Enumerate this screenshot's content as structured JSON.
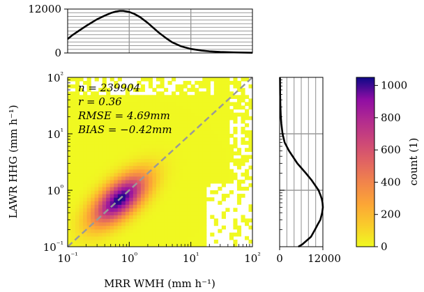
{
  "chart_data": [
    {
      "type": "heatmap",
      "panel": "main",
      "xlabel": "MRR WMH (mm h⁻¹)",
      "ylabel": "LAWR HHG (mm h⁻¹)",
      "xscale": "log",
      "yscale": "log",
      "xlim": [
        0.1,
        100
      ],
      "ylim": [
        0.1,
        100
      ],
      "xticks": [
        {
          "value": 0.1,
          "label": "10⁻¹"
        },
        {
          "value": 1,
          "label": "10⁰"
        },
        {
          "value": 10,
          "label": "10¹"
        },
        {
          "value": 100,
          "label": "10²"
        }
      ],
      "yticks": [
        {
          "value": 0.1,
          "label": "10⁻¹"
        },
        {
          "value": 1,
          "label": "10⁰"
        },
        {
          "value": 10,
          "label": "10¹"
        },
        {
          "value": 100,
          "label": "10²"
        }
      ],
      "annotations": [
        "n = 239904",
        "r = 0.36",
        "RMSE = 4.69mm",
        "BIAS = −0.42mm"
      ],
      "reference_line": "1:1 identity line (dashed grey)",
      "density_peak": {
        "x": 0.7,
        "y": 0.7,
        "count": 1050
      }
    },
    {
      "type": "line",
      "panel": "top-marginal",
      "series": [
        {
          "x": [
            0.1,
            0.12,
            0.15,
            0.2,
            0.3,
            0.4,
            0.5,
            0.6,
            0.7,
            0.8,
            1,
            1.2,
            1.5,
            2,
            3,
            4,
            5,
            7,
            10,
            15,
            20,
            30,
            50,
            100
          ],
          "values": [
            3800,
            4900,
            6000,
            7400,
            9200,
            10200,
            10900,
            11300,
            11500,
            11500,
            11200,
            10700,
            9800,
            8200,
            5600,
            4000,
            2900,
            1800,
            1100,
            650,
            450,
            280,
            150,
            60
          ]
        }
      ],
      "ylim": [
        0,
        12000
      ],
      "yticks": [
        {
          "value": 0,
          "label": "0"
        },
        {
          "value": 12000,
          "label": "12000"
        }
      ],
      "grid": true
    },
    {
      "type": "line",
      "panel": "right-marginal",
      "series": [
        {
          "x": [
            0.1,
            0.11,
            0.13,
            0.15,
            0.2,
            0.25,
            0.3,
            0.4,
            0.5,
            0.6,
            0.7,
            0.8,
            1,
            1.5,
            2,
            3,
            5,
            7,
            10,
            15,
            20,
            30,
            50,
            100
          ],
          "values": [
            5200,
            6300,
            7600,
            8700,
            9800,
            10600,
            11300,
            11800,
            12000,
            11900,
            11700,
            11400,
            10800,
            8900,
            7300,
            4900,
            2600,
            1400,
            800,
            480,
            330,
            220,
            140,
            100
          ]
        }
      ],
      "xlim": [
        0,
        12000
      ],
      "xticks": [
        {
          "value": 0,
          "label": "0"
        },
        {
          "value": 12000,
          "label": "12000"
        }
      ],
      "grid": true
    },
    {
      "type": "colorbar",
      "panel": "colorbar",
      "label": "count (1)",
      "range": [
        0,
        1050
      ],
      "ticks": [
        0,
        200,
        400,
        600,
        800,
        1000
      ],
      "colormap": "plasma_r"
    }
  ]
}
